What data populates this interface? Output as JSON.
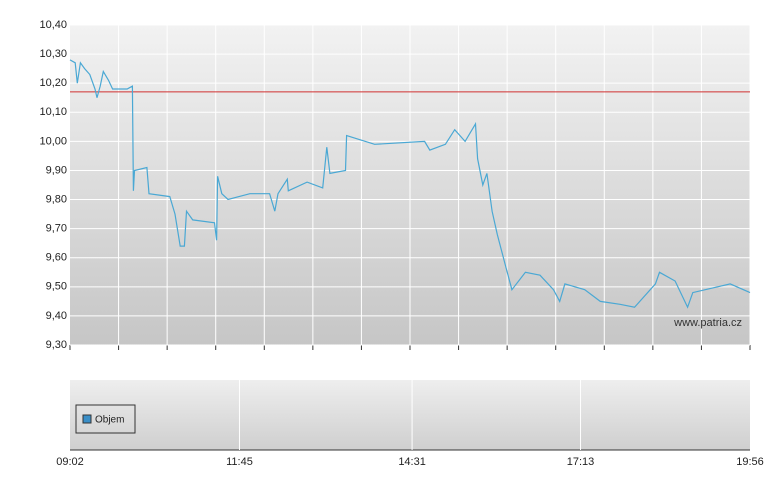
{
  "chart_data": {
    "type": "line",
    "x": [
      "09:02",
      "09:07",
      "09:09",
      "09:12",
      "09:16",
      "09:21",
      "09:26",
      "09:28",
      "09:31",
      "09:34",
      "09:39",
      "09:43",
      "09:50",
      "09:57",
      "10:02",
      "10:03",
      "10:04",
      "10:16",
      "10:18",
      "10:38",
      "10:43",
      "10:48",
      "10:52",
      "10:54",
      "11:00",
      "11:21",
      "11:23",
      "11:24",
      "11:28",
      "11:34",
      "11:55",
      "12:14",
      "12:19",
      "12:22",
      "12:31",
      "12:32",
      "12:50",
      "13:05",
      "13:09",
      "13:12",
      "13:27",
      "13:28",
      "13:55",
      "14:43",
      "14:48",
      "15:03",
      "15:12",
      "15:22",
      "15:32",
      "15:34",
      "15:39",
      "15:43",
      "15:48",
      "15:53",
      "16:01",
      "16:07",
      "16:20",
      "16:34",
      "16:47",
      "16:53",
      "16:58",
      "17:17",
      "17:32",
      "17:51",
      "18:05",
      "18:25",
      "18:29",
      "18:44",
      "18:56",
      "19:01",
      "19:37",
      "19:56"
    ],
    "values": [
      10.28,
      10.27,
      10.2,
      10.27,
      10.25,
      10.23,
      10.18,
      10.15,
      10.19,
      10.24,
      10.21,
      10.18,
      10.18,
      10.18,
      10.19,
      9.83,
      9.9,
      9.91,
      9.82,
      9.81,
      9.75,
      9.64,
      9.64,
      9.76,
      9.73,
      9.72,
      9.66,
      9.88,
      9.82,
      9.8,
      9.82,
      9.82,
      9.76,
      9.82,
      9.87,
      9.83,
      9.86,
      9.84,
      9.98,
      9.89,
      9.9,
      10.02,
      9.99,
      10.0,
      9.97,
      9.99,
      10.04,
      10.0,
      10.06,
      9.94,
      9.85,
      9.89,
      9.76,
      9.68,
      9.57,
      9.49,
      9.55,
      9.54,
      9.49,
      9.45,
      9.51,
      9.49,
      9.45,
      9.44,
      9.43,
      9.51,
      9.55,
      9.52,
      9.43,
      9.48,
      9.51,
      9.48
    ],
    "color": "#4aa8d4",
    "reference_line": {
      "value": 10.17,
      "color": "#d03030"
    },
    "xlim": [
      "09:02",
      "19:56"
    ],
    "xticks": [
      "09:02",
      "11:45",
      "14:31",
      "17:13",
      "19:56"
    ],
    "ylim": [
      9.3,
      10.4
    ],
    "yticks": [
      {
        "value": 9.3,
        "label": "9,30"
      },
      {
        "value": 9.4,
        "label": "9,40"
      },
      {
        "value": 9.5,
        "label": "9,50"
      },
      {
        "value": 9.6,
        "label": "9,60"
      },
      {
        "value": 9.7,
        "label": "9,70"
      },
      {
        "value": 9.8,
        "label": "9,80"
      },
      {
        "value": 9.9,
        "label": "9,90"
      },
      {
        "value": 10.0,
        "label": "10,00"
      },
      {
        "value": 10.1,
        "label": "10,10"
      },
      {
        "value": 10.2,
        "label": "10,20"
      },
      {
        "value": 10.3,
        "label": "10,30"
      },
      {
        "value": 10.4,
        "label": "10,40"
      }
    ],
    "grid": true,
    "watermark": "www.patria.cz",
    "volume_legend": {
      "name": "Objem",
      "color": "#3a8fc8"
    }
  }
}
